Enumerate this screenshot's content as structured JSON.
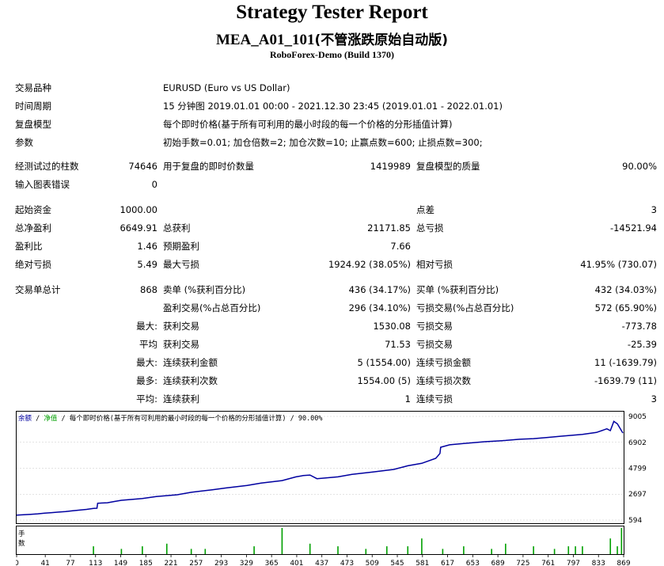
{
  "report": {
    "title": "Strategy Tester Report",
    "subtitle_latin": "MEA_A01_101",
    "subtitle_cn": "(不管涨跌原始自动版)",
    "server": "RoboForex-Demo (Build 1370)"
  },
  "info": [
    {
      "label": "交易品种",
      "value": "EURUSD (Euro vs US Dollar)"
    },
    {
      "label": "时间周期",
      "value": "15 分钟图 2019.01.01 00:00 - 2021.12.30 23:45 (2019.01.01 - 2022.01.01)"
    },
    {
      "label": "复盘模型",
      "value": "每个即时价格(基于所有可利用的最小时段的每一个价格的分形插值计算)"
    },
    {
      "label": "参数",
      "value": "初始手数=0.01; 加仓倍数=2; 加仓次数=10; 止赢点数=600; 止损点数=300;"
    }
  ],
  "quality": {
    "bars_label": "经测试过的柱数",
    "bars_value": "74646",
    "ticks_label": "用于复盘的即时价数量",
    "ticks_value": "1419989",
    "model_quality_label": "复盘模型的质量",
    "model_quality_value": "90.00%",
    "errors_label": "输入图表错误",
    "errors_value": "0"
  },
  "stats": {
    "initial_deposit_label": "起始资金",
    "initial_deposit": "1000.00",
    "spread_label": "点差",
    "spread": "3",
    "net_profit_label": "总净盈利",
    "net_profit": "6649.91",
    "gross_profit_label": "总获利",
    "gross_profit": "21171.85",
    "gross_loss_label": "总亏损",
    "gross_loss": "-14521.94",
    "profit_factor_label": "盈利比",
    "profit_factor": "1.46",
    "expected_payoff_label": "预期盈利",
    "expected_payoff": "7.66",
    "abs_drawdown_label": "绝对亏损",
    "abs_drawdown": "5.49",
    "max_drawdown_label": "最大亏损",
    "max_drawdown": "1924.92 (38.05%)",
    "rel_drawdown_label": "相对亏损",
    "rel_drawdown": "41.95% (730.07)"
  },
  "trades": {
    "total_label": "交易单总计",
    "total": "868",
    "short_label": "卖单 (%获利百分比)",
    "short": "436 (34.17%)",
    "long_label": "买单 (%获利百分比)",
    "long": "432 (34.03%)",
    "profit_trades_label": "盈利交易(%占总百分比)",
    "profit_trades": "296 (34.10%)",
    "loss_trades_label": "亏损交易(%占总百分比)",
    "loss_trades": "572 (65.90%)",
    "largest_prefix": "最大:",
    "largest_profit_label": "获利交易",
    "largest_profit": "1530.08",
    "largest_loss_label": "亏损交易",
    "largest_loss": "-773.78",
    "average_prefix": "平均",
    "average_profit_label": "获利交易",
    "average_profit": "71.53",
    "average_loss_label": "亏损交易",
    "average_loss": "-25.39",
    "max_consec_prefix": "最大:",
    "max_consec_wins_label": "连续获利金额",
    "max_consec_wins": "5 (1554.00)",
    "max_consec_losses_label": "连续亏损金额",
    "max_consec_losses": "11 (-1639.79)",
    "max_consec_count_prefix": "最多:",
    "max_consec_profit_label": "连续获利次数",
    "max_consec_profit": "1554.00 (5)",
    "max_consec_loss_label": "连续亏损次数",
    "max_consec_loss": "-1639.79 (11)",
    "avg_consec_prefix": "平均:",
    "avg_consec_wins_label": "连续获利",
    "avg_consec_wins": "1",
    "avg_consec_losses_label": "连续亏损",
    "avg_consec_losses": "3"
  },
  "chart_caption": {
    "balance": "余额",
    "sep1": " / ",
    "equity": "净值",
    "rest": " / 每个即时价格(基于所有可利用的最小时段的每一个价格的分形插值计算) / 90.00%"
  },
  "colors": {
    "balance": "#0000a0",
    "equity": "#00a000",
    "grid": "#c8c8c8"
  },
  "chart_data": {
    "type": "line",
    "x": [
      0,
      10,
      20,
      30,
      40,
      50,
      60,
      70,
      80,
      90,
      100,
      110,
      115,
      116,
      130,
      140,
      150,
      180,
      200,
      230,
      250,
      280,
      300,
      330,
      350,
      380,
      400,
      410,
      420,
      430,
      460,
      480,
      510,
      540,
      560,
      580,
      600,
      606,
      607,
      620,
      640,
      670,
      700,
      720,
      740,
      760,
      780,
      810,
      830,
      845,
      850,
      855,
      860,
      868
    ],
    "series": [
      {
        "values": [
          1000,
          1030,
          1060,
          1100,
          1150,
          1200,
          1240,
          1290,
          1350,
          1400,
          1460,
          1540,
          1560,
          1960,
          2000,
          2100,
          2200,
          2350,
          2500,
          2650,
          2850,
          3050,
          3200,
          3400,
          3600,
          3800,
          4100,
          4200,
          4250,
          3950,
          4100,
          4300,
          4500,
          4700,
          5000,
          5200,
          5600,
          6000,
          6500,
          6700,
          6800,
          6950,
          7050,
          7150,
          7200,
          7300,
          7400,
          7550,
          7700,
          8000,
          7850,
          8600,
          8400,
          7650
        ]
      }
    ],
    "lot_bars": {
      "x": [
        110,
        150,
        180,
        215,
        250,
        270,
        340,
        380,
        420,
        460,
        500,
        530,
        560,
        580,
        610,
        640,
        680,
        700,
        740,
        770,
        790,
        800,
        810,
        850,
        860,
        866
      ],
      "values": [
        0.3,
        0.2,
        0.3,
        0.4,
        0.2,
        0.2,
        0.3,
        1.0,
        0.4,
        0.3,
        0.2,
        0.3,
        0.3,
        0.6,
        0.2,
        0.3,
        0.2,
        0.4,
        0.3,
        0.2,
        0.3,
        0.3,
        0.3,
        0.6,
        0.3,
        1.0
      ]
    },
    "y_ticks": [
      "9005",
      "6902",
      "4799",
      "2697",
      "594"
    ],
    "x_ticks": [
      "0",
      "41",
      "77",
      "113",
      "149",
      "185",
      "221",
      "257",
      "293",
      "329",
      "365",
      "401",
      "437",
      "473",
      "509",
      "545",
      "581",
      "617",
      "653",
      "689",
      "725",
      "761",
      "797",
      "833",
      "869"
    ],
    "ylim": [
      594,
      9005
    ],
    "xlim": [
      0,
      869
    ],
    "lot_axis_label": "手数"
  }
}
